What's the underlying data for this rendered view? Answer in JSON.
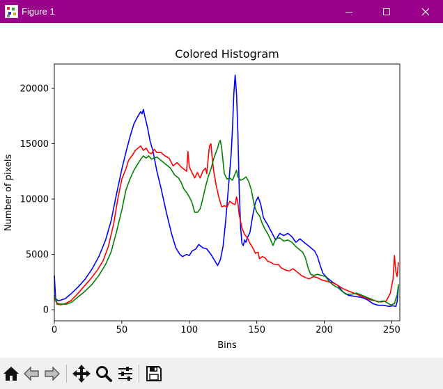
{
  "window": {
    "title": "Figure 1",
    "titlebar_color": "#9a0089",
    "controls": [
      "minimize-icon",
      "maximize-icon",
      "close-icon"
    ]
  },
  "toolbar": {
    "buttons": [
      {
        "name": "home-button",
        "icon": "home-icon"
      },
      {
        "name": "back-button",
        "icon": "arrow-left-icon"
      },
      {
        "name": "forward-button",
        "icon": "arrow-right-icon"
      },
      {
        "name": "pan-button",
        "icon": "move-icon"
      },
      {
        "name": "zoom-button",
        "icon": "magnifier-icon"
      },
      {
        "name": "configure-subplots-button",
        "icon": "sliders-icon"
      },
      {
        "name": "save-button",
        "icon": "floppy-disk-icon"
      }
    ]
  },
  "chart_data": {
    "type": "line",
    "title": "Colored Histogram",
    "xlabel": "Bins",
    "ylabel": "Number of pixels",
    "xlim": [
      0,
      256
    ],
    "ylim": [
      -1000,
      22200
    ],
    "xticks": [
      0,
      50,
      100,
      150,
      200,
      250
    ],
    "yticks": [
      0,
      5000,
      10000,
      15000,
      20000
    ],
    "grid": false,
    "series": [
      {
        "color": "#0000ff",
        "points": [
          [
            0,
            3100
          ],
          [
            1,
            1000
          ],
          [
            3,
            800
          ],
          [
            8,
            1000
          ],
          [
            12,
            1400
          ],
          [
            18,
            2100
          ],
          [
            23,
            2800
          ],
          [
            28,
            3700
          ],
          [
            33,
            4800
          ],
          [
            38,
            6300
          ],
          [
            42,
            8000
          ],
          [
            46,
            10400
          ],
          [
            50,
            12700
          ],
          [
            53,
            14200
          ],
          [
            56,
            15600
          ],
          [
            59,
            16800
          ],
          [
            62,
            17500
          ],
          [
            64,
            17900
          ],
          [
            65,
            17700
          ],
          [
            66,
            18100
          ],
          [
            67,
            17500
          ],
          [
            69,
            16500
          ],
          [
            71,
            15200
          ],
          [
            73,
            14400
          ],
          [
            76,
            12500
          ],
          [
            79,
            11000
          ],
          [
            83,
            8800
          ],
          [
            87,
            6800
          ],
          [
            90,
            5600
          ],
          [
            93,
            5000
          ],
          [
            95,
            4800
          ],
          [
            98,
            5000
          ],
          [
            100,
            4900
          ],
          [
            102,
            5300
          ],
          [
            105,
            5500
          ],
          [
            107,
            5900
          ],
          [
            110,
            5600
          ],
          [
            113,
            5500
          ],
          [
            116,
            5000
          ],
          [
            119,
            4400
          ],
          [
            121,
            4000
          ],
          [
            123,
            4500
          ],
          [
            125,
            5700
          ],
          [
            127,
            8100
          ],
          [
            129,
            11000
          ],
          [
            131,
            14000
          ],
          [
            132,
            16400
          ],
          [
            133,
            19500
          ],
          [
            134,
            21200
          ],
          [
            135,
            19500
          ],
          [
            136,
            16000
          ],
          [
            137,
            11000
          ],
          [
            138,
            7500
          ],
          [
            139,
            6000
          ],
          [
            140,
            5800
          ],
          [
            141,
            6300
          ],
          [
            142,
            6100
          ],
          [
            143,
            6500
          ],
          [
            145,
            7000
          ],
          [
            147,
            8500
          ],
          [
            149,
            9700
          ],
          [
            151,
            10200
          ],
          [
            153,
            9500
          ],
          [
            155,
            8300
          ],
          [
            158,
            7700
          ],
          [
            161,
            7000
          ],
          [
            164,
            6300
          ],
          [
            167,
            6900
          ],
          [
            170,
            6700
          ],
          [
            173,
            6900
          ],
          [
            176,
            6600
          ],
          [
            179,
            6100
          ],
          [
            182,
            6400
          ],
          [
            185,
            6100
          ],
          [
            188,
            5800
          ],
          [
            191,
            5500
          ],
          [
            193,
            5300
          ],
          [
            195,
            4800
          ],
          [
            197,
            4000
          ],
          [
            199,
            3300
          ],
          [
            202,
            2900
          ],
          [
            206,
            2500
          ],
          [
            210,
            2200
          ],
          [
            214,
            1600
          ],
          [
            218,
            1300
          ],
          [
            223,
            1200
          ],
          [
            228,
            1100
          ],
          [
            232,
            900
          ],
          [
            236,
            550
          ],
          [
            240,
            400
          ],
          [
            244,
            400
          ],
          [
            248,
            300
          ],
          [
            251,
            350
          ],
          [
            253,
            300
          ],
          [
            254,
            700
          ],
          [
            255,
            2100
          ]
        ]
      },
      {
        "color": "#ff0000",
        "points": [
          [
            0,
            1100
          ],
          [
            2,
            500
          ],
          [
            5,
            450
          ],
          [
            8,
            550
          ],
          [
            12,
            800
          ],
          [
            17,
            1400
          ],
          [
            22,
            2100
          ],
          [
            27,
            2800
          ],
          [
            32,
            3600
          ],
          [
            36,
            4400
          ],
          [
            40,
            5700
          ],
          [
            44,
            7800
          ],
          [
            47,
            10000
          ],
          [
            50,
            11800
          ],
          [
            53,
            12700
          ],
          [
            55,
            13500
          ],
          [
            58,
            14000
          ],
          [
            60,
            14400
          ],
          [
            62,
            14600
          ],
          [
            64,
            14800
          ],
          [
            66,
            14400
          ],
          [
            68,
            14600
          ],
          [
            70,
            14200
          ],
          [
            72,
            14100
          ],
          [
            74,
            14500
          ],
          [
            76,
            14200
          ],
          [
            79,
            14200
          ],
          [
            82,
            13900
          ],
          [
            85,
            13700
          ],
          [
            88,
            13000
          ],
          [
            91,
            13300
          ],
          [
            94,
            12900
          ],
          [
            96,
            12700
          ],
          [
            98,
            12500
          ],
          [
            99,
            14300
          ],
          [
            100,
            12900
          ],
          [
            102,
            12400
          ],
          [
            104,
            11900
          ],
          [
            106,
            12400
          ],
          [
            108,
            11900
          ],
          [
            110,
            12500
          ],
          [
            112,
            12800
          ],
          [
            113,
            12300
          ],
          [
            114,
            13700
          ],
          [
            115,
            14800
          ],
          [
            116,
            15000
          ],
          [
            117,
            13700
          ],
          [
            118,
            12600
          ],
          [
            120,
            11200
          ],
          [
            122,
            10100
          ],
          [
            124,
            9300
          ],
          [
            126,
            9400
          ],
          [
            128,
            9300
          ],
          [
            130,
            9800
          ],
          [
            132,
            9600
          ],
          [
            134,
            9500
          ],
          [
            135,
            10200
          ],
          [
            136,
            9700
          ],
          [
            137,
            8600
          ],
          [
            139,
            7400
          ],
          [
            141,
            6800
          ],
          [
            143,
            6500
          ],
          [
            145,
            6000
          ],
          [
            147,
            5600
          ],
          [
            149,
            5100
          ],
          [
            151,
            5200
          ],
          [
            152,
            4600
          ],
          [
            154,
            4800
          ],
          [
            156,
            4700
          ],
          [
            158,
            4400
          ],
          [
            160,
            4300
          ],
          [
            163,
            4100
          ],
          [
            166,
            4100
          ],
          [
            168,
            3800
          ],
          [
            171,
            3600
          ],
          [
            174,
            3500
          ],
          [
            177,
            3700
          ],
          [
            180,
            3400
          ],
          [
            183,
            3100
          ],
          [
            186,
            2900
          ],
          [
            189,
            2800
          ],
          [
            192,
            3000
          ],
          [
            195,
            2900
          ],
          [
            198,
            2700
          ],
          [
            201,
            2600
          ],
          [
            204,
            2500
          ],
          [
            207,
            2400
          ],
          [
            210,
            2200
          ],
          [
            214,
            1900
          ],
          [
            218,
            1700
          ],
          [
            222,
            1500
          ],
          [
            226,
            1300
          ],
          [
            230,
            1100
          ],
          [
            234,
            900
          ],
          [
            238,
            800
          ],
          [
            242,
            700
          ],
          [
            246,
            800
          ],
          [
            249,
            1500
          ],
          [
            251,
            2800
          ],
          [
            252,
            4900
          ],
          [
            253,
            3500
          ],
          [
            254,
            3000
          ],
          [
            255,
            4300
          ]
        ]
      },
      {
        "color": "#008000",
        "points": [
          [
            0,
            1300
          ],
          [
            2,
            600
          ],
          [
            5,
            500
          ],
          [
            9,
            500
          ],
          [
            13,
            700
          ],
          [
            18,
            1200
          ],
          [
            23,
            1700
          ],
          [
            28,
            2300
          ],
          [
            33,
            3100
          ],
          [
            38,
            4100
          ],
          [
            42,
            5200
          ],
          [
            46,
            7000
          ],
          [
            50,
            9000
          ],
          [
            53,
            10800
          ],
          [
            56,
            11800
          ],
          [
            59,
            12600
          ],
          [
            62,
            13200
          ],
          [
            64,
            13600
          ],
          [
            66,
            13900
          ],
          [
            68,
            13700
          ],
          [
            70,
            13900
          ],
          [
            72,
            13600
          ],
          [
            74,
            13700
          ],
          [
            76,
            13800
          ],
          [
            78,
            13600
          ],
          [
            80,
            13400
          ],
          [
            83,
            13100
          ],
          [
            86,
            12800
          ],
          [
            89,
            12200
          ],
          [
            92,
            11900
          ],
          [
            94,
            11500
          ],
          [
            96,
            10900
          ],
          [
            98,
            10600
          ],
          [
            100,
            10200
          ],
          [
            102,
            9700
          ],
          [
            104,
            8800
          ],
          [
            106,
            8800
          ],
          [
            108,
            9100
          ],
          [
            110,
            10000
          ],
          [
            112,
            11100
          ],
          [
            114,
            12000
          ],
          [
            116,
            12700
          ],
          [
            118,
            13600
          ],
          [
            120,
            14300
          ],
          [
            121,
            14600
          ],
          [
            122,
            15100
          ],
          [
            123,
            15300
          ],
          [
            124,
            14600
          ],
          [
            125,
            13400
          ],
          [
            126,
            12300
          ],
          [
            128,
            11800
          ],
          [
            130,
            11900
          ],
          [
            132,
            11700
          ],
          [
            134,
            12300
          ],
          [
            135,
            12600
          ],
          [
            136,
            12000
          ],
          [
            138,
            11700
          ],
          [
            140,
            11800
          ],
          [
            142,
            12000
          ],
          [
            144,
            11600
          ],
          [
            146,
            10800
          ],
          [
            148,
            9500
          ],
          [
            150,
            8800
          ],
          [
            152,
            8500
          ],
          [
            154,
            7800
          ],
          [
            156,
            7300
          ],
          [
            158,
            6900
          ],
          [
            160,
            6400
          ],
          [
            162,
            5800
          ],
          [
            164,
            6400
          ],
          [
            167,
            6500
          ],
          [
            170,
            6200
          ],
          [
            173,
            6300
          ],
          [
            176,
            6100
          ],
          [
            179,
            5700
          ],
          [
            182,
            5400
          ],
          [
            184,
            5200
          ],
          [
            186,
            4700
          ],
          [
            188,
            3800
          ],
          [
            190,
            3200
          ],
          [
            192,
            3100
          ],
          [
            195,
            3200
          ],
          [
            198,
            3100
          ],
          [
            201,
            3000
          ],
          [
            204,
            2500
          ],
          [
            207,
            2200
          ],
          [
            210,
            2000
          ],
          [
            213,
            1700
          ],
          [
            216,
            1400
          ],
          [
            220,
            1400
          ],
          [
            224,
            1500
          ],
          [
            228,
            1300
          ],
          [
            232,
            1100
          ],
          [
            236,
            900
          ],
          [
            240,
            700
          ],
          [
            244,
            800
          ],
          [
            247,
            600
          ],
          [
            249,
            450
          ],
          [
            250,
            450
          ],
          [
            252,
            550
          ],
          [
            253,
            1000
          ],
          [
            254,
            1300
          ],
          [
            255,
            2300
          ]
        ]
      }
    ]
  }
}
